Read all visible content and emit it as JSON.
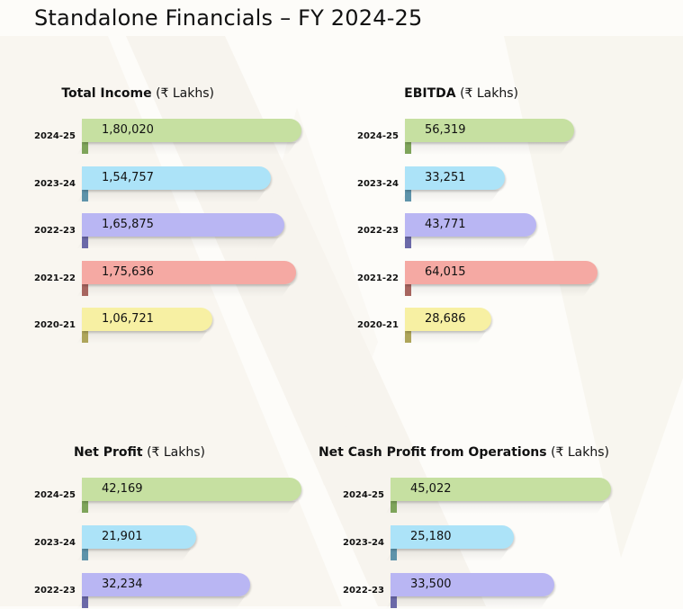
{
  "page": {
    "title": "Standalone Financials – FY 2024-25"
  },
  "colors": {
    "bar_2024_25": "#c6e0a1",
    "fold_2024_25": "#7ea45a",
    "bar_2023_24": "#ace3f8",
    "fold_2023_24": "#5e93aa",
    "bar_2022_23": "#b9b6f3",
    "fold_2022_23": "#6b69a8",
    "bar_2021_22": "#f5a9a3",
    "fold_2021_22": "#a7655f",
    "bar_2020_21": "#f7f0a3",
    "fold_2020_21": "#aea55a"
  },
  "chart_data": [
    {
      "type": "bar",
      "title": "Total Income",
      "unit": "(₹ Lakhs)",
      "categories": [
        "2024-25",
        "2023-24",
        "2022-23",
        "2021-22",
        "2020-21"
      ],
      "values": [
        180020,
        154757,
        165875,
        175636,
        106721
      ],
      "labels": [
        "1,80,020",
        "1,54,757",
        "1,65,875",
        "1,75,636",
        "1,06,721"
      ],
      "xlim": [
        0,
        180020
      ]
    },
    {
      "type": "bar",
      "title": "EBITDA",
      "unit": "(₹ Lakhs)",
      "categories": [
        "2024-25",
        "2023-24",
        "2022-23",
        "2021-22",
        "2020-21"
      ],
      "values": [
        56319,
        33251,
        43771,
        64015,
        28686
      ],
      "labels": [
        "56,319",
        "33,251",
        "43,771",
        "64,015",
        "28,686"
      ],
      "xlim": [
        0,
        64015
      ]
    },
    {
      "type": "bar",
      "title": "Net Profit",
      "unit": "(₹ Lakhs)",
      "categories": [
        "2024-25",
        "2023-24",
        "2022-23"
      ],
      "values": [
        42169,
        21901,
        32234
      ],
      "labels": [
        "42,169",
        "21,901",
        "32,234"
      ],
      "xlim": [
        0,
        42169
      ]
    },
    {
      "type": "bar",
      "title": "Net Cash Profit from Operations",
      "unit": "(₹ Lakhs)",
      "categories": [
        "2024-25",
        "2023-24",
        "2022-23"
      ],
      "values": [
        45022,
        25180,
        33500
      ],
      "labels": [
        "45,022",
        "25,180",
        "33,500"
      ],
      "xlim": [
        0,
        45022
      ]
    }
  ]
}
